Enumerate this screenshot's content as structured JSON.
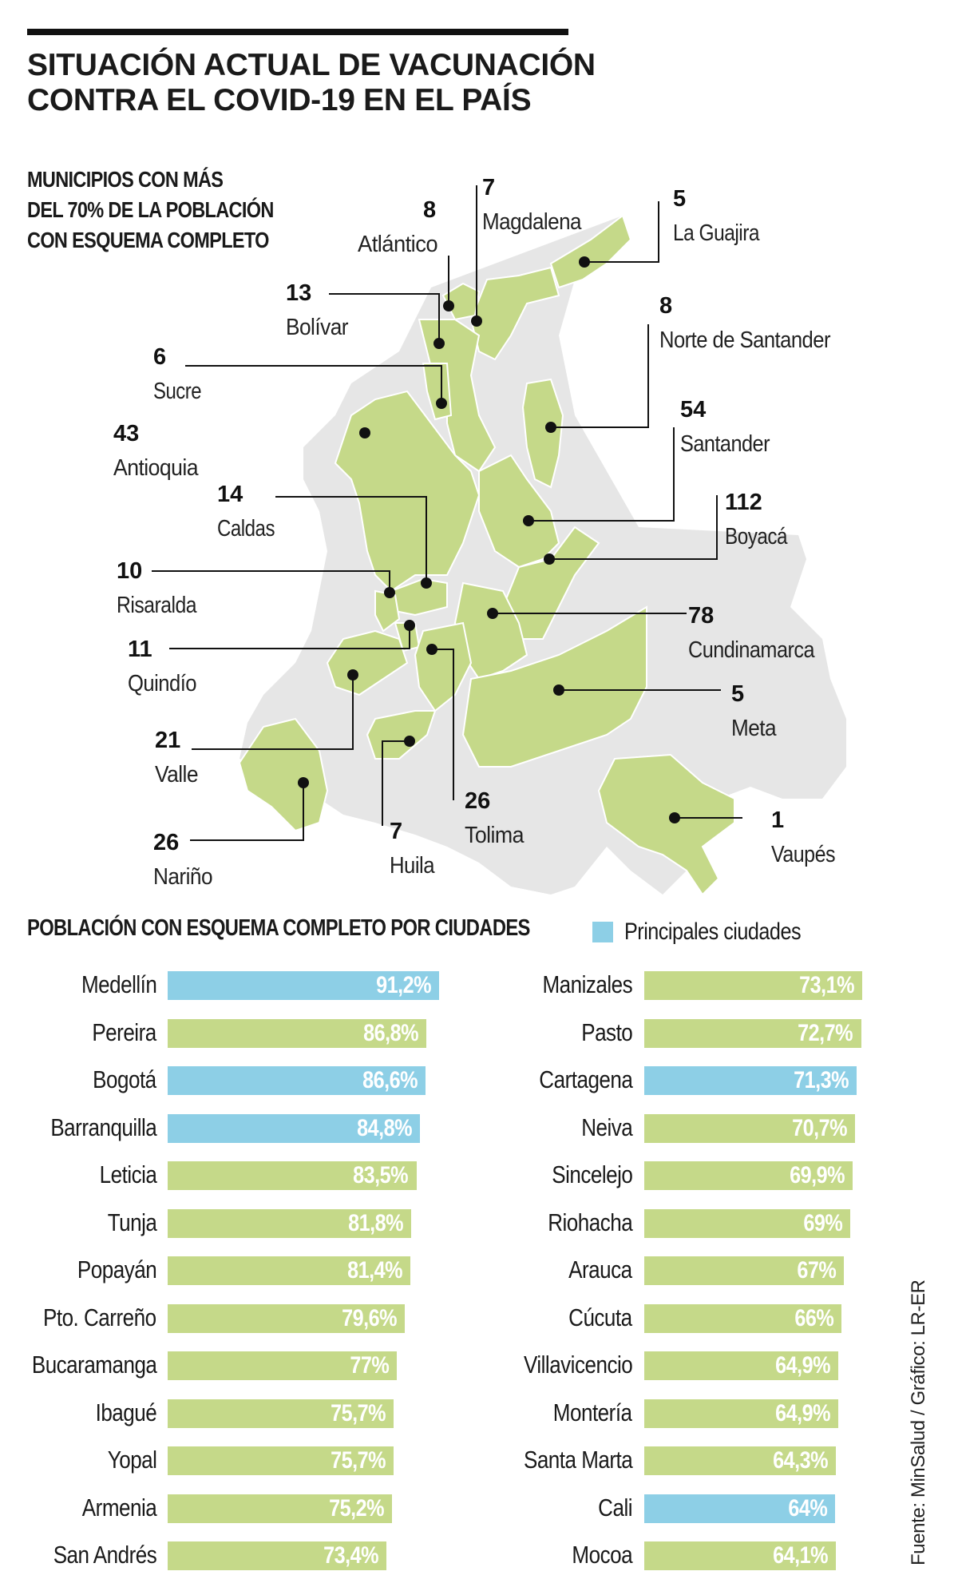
{
  "title": {
    "line1": "SITUACIÓN ACTUAL DE VACUNACIÓN",
    "line2": "CONTRA EL COVID-19 EN EL PAÍS"
  },
  "map_section": {
    "title_line1": "MUNICIPIOS CON MÁS",
    "title_line2": "DEL 70% DE LA POBLACIÓN",
    "title_line3": "CON ESQUEMA COMPLETO"
  },
  "colors": {
    "green": "#c5d989",
    "blue": "#8dcfe6",
    "gray_land": "#e6e6e6"
  },
  "departments": [
    {
      "name": "Atlántico",
      "count": "8"
    },
    {
      "name": "Magdalena",
      "count": "7"
    },
    {
      "name": "La Guajira",
      "count": "5"
    },
    {
      "name": "Bolívar",
      "count": "13"
    },
    {
      "name": "Norte de Santander",
      "count": "8"
    },
    {
      "name": "Sucre",
      "count": "6"
    },
    {
      "name": "Santander",
      "count": "54"
    },
    {
      "name": "Antioquia",
      "count": "43"
    },
    {
      "name": "Boyacá",
      "count": "112"
    },
    {
      "name": "Caldas",
      "count": "14"
    },
    {
      "name": "Risaralda",
      "count": "10"
    },
    {
      "name": "Cundinamarca",
      "count": "78"
    },
    {
      "name": "Quindío",
      "count": "11"
    },
    {
      "name": "Meta",
      "count": "5"
    },
    {
      "name": "Valle",
      "count": "21"
    },
    {
      "name": "Tolima",
      "count": "26"
    },
    {
      "name": "Nariño",
      "count": "26"
    },
    {
      "name": "Huila",
      "count": "7"
    },
    {
      "name": "Vaupés",
      "count": "1"
    }
  ],
  "cities_section": {
    "title": "POBLACIÓN CON ESQUEMA COMPLETO POR CIUDADES",
    "legend_label": "Principales ciudades"
  },
  "chart_data": {
    "type": "bar",
    "title": "POBLACIÓN CON ESQUEMA COMPLETO POR CIUDADES",
    "unit": "%",
    "legend": [
      "Principales ciudades"
    ],
    "cities": [
      {
        "city": "Medellín",
        "value": 91.2,
        "label": "91,2%",
        "main": true
      },
      {
        "city": "Pereira",
        "value": 86.8,
        "label": "86,8%",
        "main": false
      },
      {
        "city": "Bogotá",
        "value": 86.6,
        "label": "86,6%",
        "main": true
      },
      {
        "city": "Barranquilla",
        "value": 84.8,
        "label": "84,8%",
        "main": true
      },
      {
        "city": "Leticia",
        "value": 83.5,
        "label": "83,5%",
        "main": false
      },
      {
        "city": "Tunja",
        "value": 81.8,
        "label": "81,8%",
        "main": false
      },
      {
        "city": "Popayán",
        "value": 81.4,
        "label": "81,4%",
        "main": false
      },
      {
        "city": "Pto. Carreño",
        "value": 79.6,
        "label": "79,6%",
        "main": false
      },
      {
        "city": "Bucaramanga",
        "value": 77,
        "label": "77%",
        "main": false
      },
      {
        "city": "Ibagué",
        "value": 75.7,
        "label": "75,7%",
        "main": false
      },
      {
        "city": "Yopal",
        "value": 75.7,
        "label": "75,7%",
        "main": false
      },
      {
        "city": "Armenia",
        "value": 75.2,
        "label": "75,2%",
        "main": false
      },
      {
        "city": "San Andrés",
        "value": 73.4,
        "label": "73,4%",
        "main": false
      },
      {
        "city": "Manizales",
        "value": 73.1,
        "label": "73,1%",
        "main": false
      },
      {
        "city": "Pasto",
        "value": 72.7,
        "label": "72,7%",
        "main": false
      },
      {
        "city": "Cartagena",
        "value": 71.3,
        "label": "71,3%",
        "main": true
      },
      {
        "city": "Neiva",
        "value": 70.7,
        "label": "70,7%",
        "main": false
      },
      {
        "city": "Sincelejo",
        "value": 69.9,
        "label": "69,9%",
        "main": false
      },
      {
        "city": "Riohacha",
        "value": 69,
        "label": "69%",
        "main": false
      },
      {
        "city": "Arauca",
        "value": 67,
        "label": "67%",
        "main": false
      },
      {
        "city": "Cúcuta",
        "value": 66,
        "label": "66%",
        "main": false
      },
      {
        "city": "Villavicencio",
        "value": 64.9,
        "label": "64,9%",
        "main": false
      },
      {
        "city": "Montería",
        "value": 64.9,
        "label": "64,9%",
        "main": false
      },
      {
        "city": "Santa Marta",
        "value": 64.3,
        "label": "64,3%",
        "main": false
      },
      {
        "city": "Cali",
        "value": 64,
        "label": "64%",
        "main": true
      },
      {
        "city": "Mocoa",
        "value": 64.1,
        "label": "64,1%",
        "main": false
      }
    ]
  },
  "source": "Fuente: MinSalud / Gráfico: LR-ER"
}
